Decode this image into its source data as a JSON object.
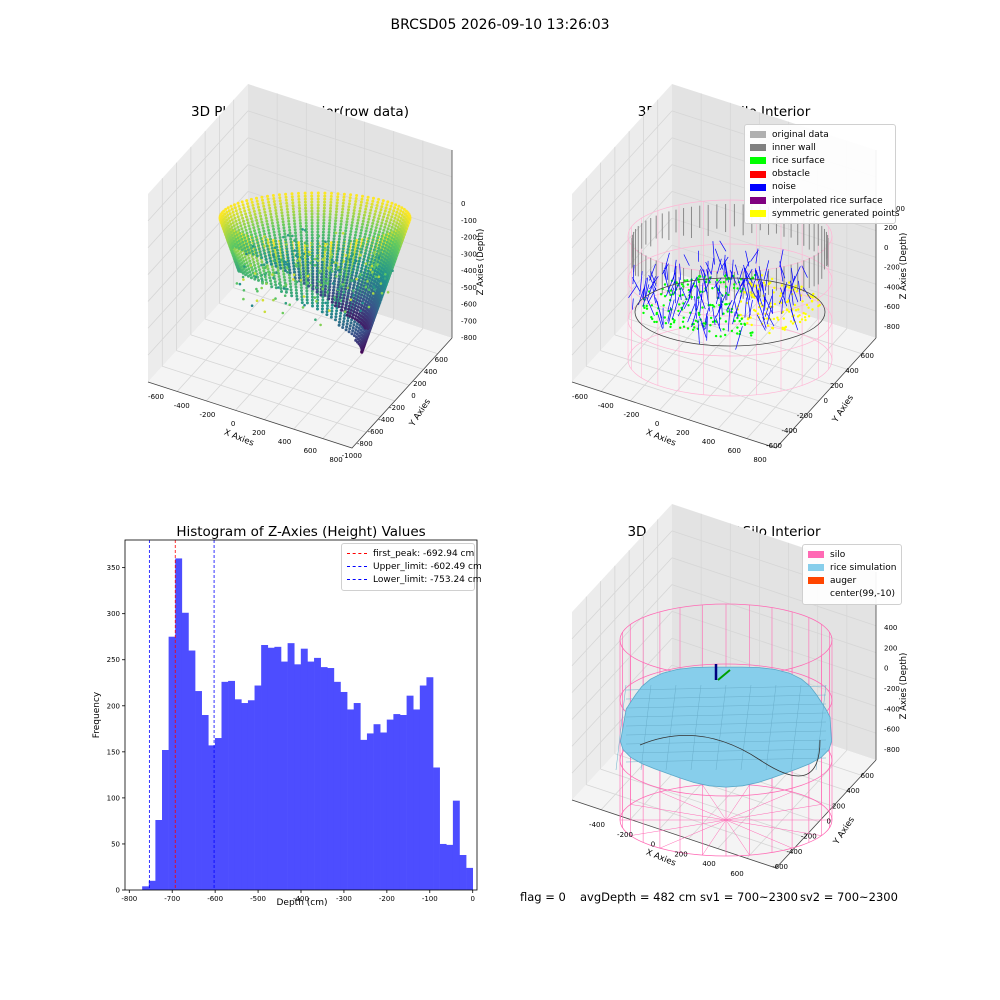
{
  "figure_title": "BRCSD05 2026-09-10 13:26:03",
  "status": {
    "flag": "flag = 0",
    "avg_depth": "avgDepth = 482 cm",
    "sv1": "sv1 = 700~2300",
    "sv2": "sv2 = 700~2300"
  },
  "colors": {
    "histogram_bar": "#4d4dff",
    "first_peak": "#ff0000",
    "limits": "#0000ff",
    "silo": "#ff69b4",
    "rice_simulation": "#87ceeb",
    "auger": "#ff4500",
    "inner_wall": "#808080",
    "rice_surface": "#00ff00",
    "noise": "#0000ff",
    "symmetric": "#ffff00"
  },
  "chart_data": [
    {
      "type": "scatter",
      "projection": "3d",
      "title": "3D Plot of Silo Interior(row data)",
      "xlabel": "X Axies",
      "ylabel": "Y Axies",
      "zlabel": "Z Axies (Depth)",
      "x_ticks": [
        "-600",
        "-400",
        "-200",
        "0",
        "200",
        "400",
        "600",
        "800"
      ],
      "y_ticks": [
        "-1000",
        "-800",
        "-600",
        "-400",
        "-200",
        "0",
        "200",
        "400",
        "600"
      ],
      "z_ticks": [
        "0",
        "-100",
        "-200",
        "-300",
        "-400",
        "-500",
        "-600",
        "-700",
        "-800"
      ],
      "colormap": "viridis"
    },
    {
      "type": "scatter",
      "projection": "3d",
      "title": "3D classify of Silo Interior",
      "xlabel": "X Axies",
      "ylabel": "Y Axies",
      "zlabel": "Z Axies (Depth)",
      "x_ticks": [
        "-600",
        "-400",
        "-200",
        "0",
        "200",
        "400",
        "600",
        "800"
      ],
      "y_ticks": [
        "-600",
        "-400",
        "-200",
        "0",
        "200",
        "400",
        "600"
      ],
      "z_ticks": [
        "200",
        "0",
        "-200",
        "-400",
        "-600",
        "-800"
      ],
      "z_tick_top_partial": "00",
      "legend": [
        {
          "label": "original data",
          "color": "#b0b0b0"
        },
        {
          "label": "inner wall",
          "color": "#808080"
        },
        {
          "label": "rice surface",
          "color": "#00ff00"
        },
        {
          "label": "obstacle",
          "color": "#ff0000"
        },
        {
          "label": "noise",
          "color": "#0000ff"
        },
        {
          "label": "interpolated rice surface",
          "color": "#800080"
        },
        {
          "label": "symmetric generated points",
          "color": "#ffff00"
        }
      ]
    },
    {
      "type": "bar",
      "title": "Histogram of Z-Axies (Height) Values",
      "xlabel": "Depth (cm)",
      "ylabel": "Frequency",
      "xlim": [
        -810,
        10
      ],
      "ylim": [
        0,
        380
      ],
      "x_ticks": [
        -800,
        -700,
        -600,
        -500,
        -400,
        -300,
        -200,
        -100,
        0
      ],
      "y_ticks": [
        0,
        50,
        100,
        150,
        200,
        250,
        300,
        350
      ],
      "bin_start": -770,
      "bin_width": 15.4,
      "values": [
        4,
        10,
        76,
        152,
        275,
        360,
        301,
        260,
        216,
        190,
        157,
        165,
        226,
        227,
        207,
        203,
        206,
        222,
        266,
        263,
        264,
        248,
        268,
        245,
        262,
        248,
        252,
        242,
        241,
        226,
        215,
        196,
        203,
        163,
        170,
        180,
        171,
        185,
        191,
        190,
        211,
        196,
        222,
        231,
        133,
        50,
        49,
        97,
        38,
        24
      ],
      "vlines": [
        {
          "label": "first_peak: -692.94 cm",
          "value": -692.94,
          "color": "#ff0000"
        },
        {
          "label": "Upper_limit: -602.49 cm",
          "value": -602.49,
          "color": "#0000ff"
        },
        {
          "label": "Lower_limit: -753.24 cm",
          "value": -753.24,
          "color": "#0000ff"
        }
      ]
    },
    {
      "type": "area",
      "projection": "3d",
      "title": "3D simulation of Silo Interior",
      "xlabel": "X Axies",
      "ylabel": "Y Axies",
      "zlabel": "Z Axies (Depth)",
      "x_ticks": [
        "-400",
        "-200",
        "0",
        "200",
        "400",
        "600"
      ],
      "y_ticks": [
        "-600",
        "-400",
        "-200",
        "0",
        "200",
        "400",
        "600"
      ],
      "z_ticks": [
        "400",
        "200",
        "0",
        "-200",
        "-400",
        "-600",
        "-800"
      ],
      "legend": [
        {
          "label": "silo",
          "color": "#ff69b4"
        },
        {
          "label": "rice simulation",
          "color": "#87ceeb"
        },
        {
          "label": "auger",
          "color": "#ff4500"
        },
        {
          "label": "center(99,-10)",
          "color": ""
        }
      ]
    }
  ]
}
